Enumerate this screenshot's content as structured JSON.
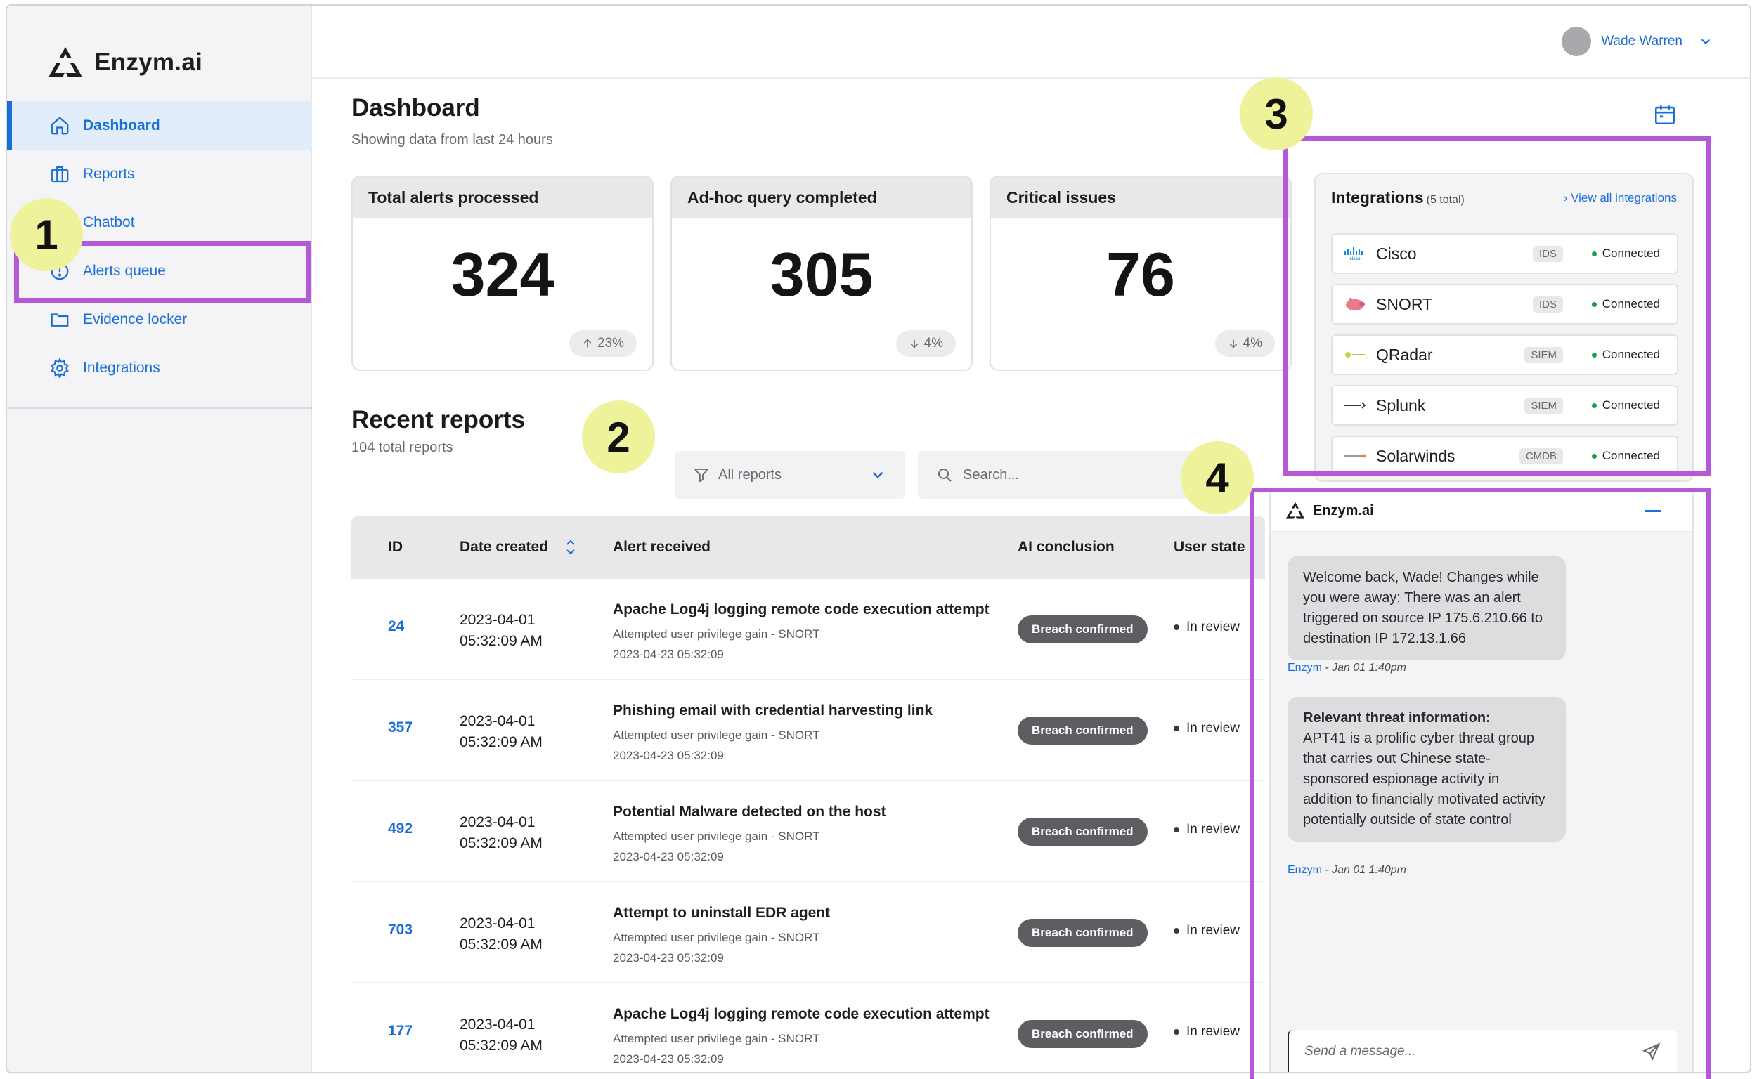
{
  "app": {
    "name": "Enzym.ai"
  },
  "user": {
    "name": "Wade Warren"
  },
  "sidebar": {
    "items": [
      {
        "label": "Dashboard",
        "icon": "home-icon",
        "active": true
      },
      {
        "label": "Reports",
        "icon": "briefcase-icon"
      },
      {
        "label": "Chatbot",
        "icon": "chat-icon"
      },
      {
        "label": "Alerts queue",
        "icon": "alert-circle-icon"
      },
      {
        "label": "Evidence locker",
        "icon": "folder-icon"
      },
      {
        "label": "Integrations",
        "icon": "gear-icon"
      }
    ]
  },
  "dashboard": {
    "title": "Dashboard",
    "subtitle": "Showing data from last 24 hours",
    "stats": [
      {
        "label": "Total alerts processed",
        "value": "324",
        "delta": "23%",
        "direction": "up"
      },
      {
        "label": "Ad-hoc query completed",
        "value": "305",
        "delta": "4%",
        "direction": "down"
      },
      {
        "label": "Critical issues",
        "value": "76",
        "delta": "4%",
        "direction": "down"
      }
    ]
  },
  "reports": {
    "title": "Recent reports",
    "subtitle": "104 total reports",
    "filter_label": "All reports",
    "search_placeholder": "Search...",
    "columns": [
      "ID",
      "Date created",
      "Alert received",
      "AI conclusion",
      "User state"
    ],
    "rows": [
      {
        "id": "24",
        "date": "2023-04-01",
        "time": "05:32:09 AM",
        "alert": "Apache Log4j logging remote code execution attempt",
        "detail": "Attempted user privilege gain - SNORT",
        "stamp": "2023-04-23 05:32:09",
        "conclusion": "Breach confirmed",
        "state": "In review"
      },
      {
        "id": "357",
        "date": "2023-04-01",
        "time": "05:32:09 AM",
        "alert": "Phishing email with credential harvesting link",
        "detail": "Attempted user privilege gain - SNORT",
        "stamp": "2023-04-23 05:32:09",
        "conclusion": "Breach confirmed",
        "state": "In review"
      },
      {
        "id": "492",
        "date": "2023-04-01",
        "time": "05:32:09 AM",
        "alert": "Potential Malware detected on the host",
        "detail": "Attempted user privilege gain - SNORT",
        "stamp": "2023-04-23 05:32:09",
        "conclusion": "Breach confirmed",
        "state": "In review"
      },
      {
        "id": "703",
        "date": "2023-04-01",
        "time": "05:32:09 AM",
        "alert": "Attempt to uninstall EDR agent",
        "detail": "Attempted user privilege gain - SNORT",
        "stamp": "2023-04-23 05:32:09",
        "conclusion": "Breach confirmed",
        "state": "In review"
      },
      {
        "id": "177",
        "date": "2023-04-01",
        "time": "05:32:09 AM",
        "alert": "Apache Log4j logging remote code execution attempt",
        "detail": "Attempted user privilege gain - SNORT",
        "stamp": "2023-04-23 05:32:09",
        "conclusion": "Breach confirmed",
        "state": "In review"
      }
    ]
  },
  "integrations": {
    "title": "Integrations",
    "count": "(5 total)",
    "view_all": "View all integrations",
    "items": [
      {
        "name": "Cisco",
        "tag": "IDS",
        "status": "Connected",
        "logo": "cisco-logo-icon"
      },
      {
        "name": "SNORT",
        "tag": "IDS",
        "status": "Connected",
        "logo": "snort-pig-icon"
      },
      {
        "name": "QRadar",
        "tag": "SIEM",
        "status": "Connected",
        "logo": "qradar-logo-icon"
      },
      {
        "name": "Splunk",
        "tag": "SIEM",
        "status": "Connected",
        "logo": "splunk-logo-icon"
      },
      {
        "name": "Solarwinds",
        "tag": "CMDB",
        "status": "Connected",
        "logo": "solarwinds-logo-icon"
      }
    ]
  },
  "chat": {
    "title": "Enzym.ai",
    "messages": [
      {
        "text": "Welcome back, Wade! Changes while you were away: There was an alert triggered on source IP 175.6.210.66 to destination IP 172.13.1.66",
        "sender": "Enzym",
        "time": " - Jan 01 1:40pm"
      },
      {
        "heading": "Relevant threat information:",
        "text": "APT41 is a prolific cyber threat group that carries out Chinese state-sponsored espionage activity in addition to financially motivated activity potentially outside of state control",
        "sender": "Enzym",
        "time": " - Jan 01 1:40pm"
      }
    ],
    "input_placeholder": "Send a message..."
  },
  "annotations": [
    "1",
    "2",
    "3",
    "4"
  ],
  "colors": {
    "accent": "#1a6fd6",
    "annotation": "#b55ad6",
    "marker": "#eef29a",
    "status_connected": "#1f9d4a",
    "badge_dark": "#5e5e62"
  }
}
